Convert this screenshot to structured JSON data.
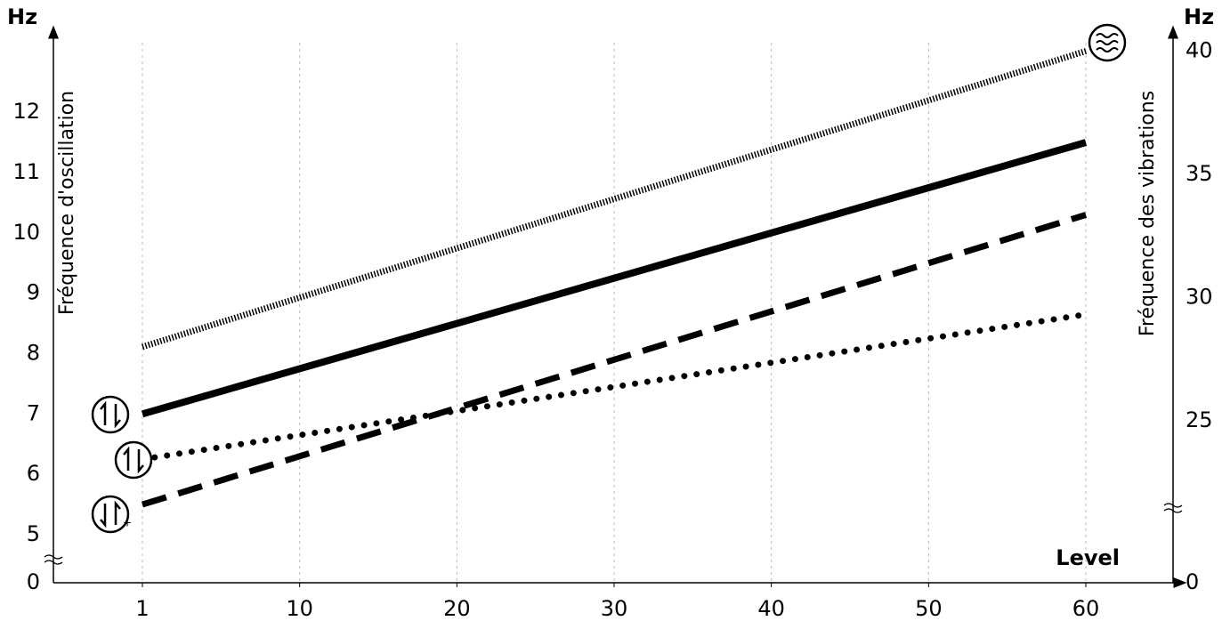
{
  "chart_data": {
    "type": "line",
    "y_unit": "Hz",
    "y2_unit": "Hz",
    "y_label": "Fréquence d'oscillation",
    "y2_label": "Fréquence des vibrations",
    "x_label": "Level",
    "categories": [
      "1",
      "10",
      "20",
      "30",
      "40",
      "50",
      "60"
    ],
    "ylim": [
      0,
      13.3
    ],
    "yticks": [
      0,
      5,
      6,
      7,
      8,
      9,
      10,
      11,
      12
    ],
    "ybreak": true,
    "y2lim": [
      0,
      40.7
    ],
    "y2ticks": [
      0,
      25,
      30,
      35,
      40
    ],
    "y2break": true,
    "grid": true,
    "series": [
      {
        "color": "#000000",
        "style": "solid",
        "values": [
          7,
          7.75,
          8.5,
          9.25,
          10,
          10.75,
          11.5
        ]
      },
      {
        "color": "#000000",
        "style": "dotted",
        "values": [
          6.25,
          6.65,
          7.05,
          7.45,
          7.85,
          8.25,
          8.65
        ]
      },
      {
        "color": "#000000",
        "style": "dashed",
        "values": [
          5.5,
          6.3,
          7.1,
          7.9,
          8.7,
          9.5,
          10.3
        ]
      },
      {
        "color": "#000000",
        "style": "hatched",
        "axis": "y2",
        "values": [
          28,
          30,
          32,
          34,
          36,
          38,
          40
        ]
      }
    ]
  }
}
